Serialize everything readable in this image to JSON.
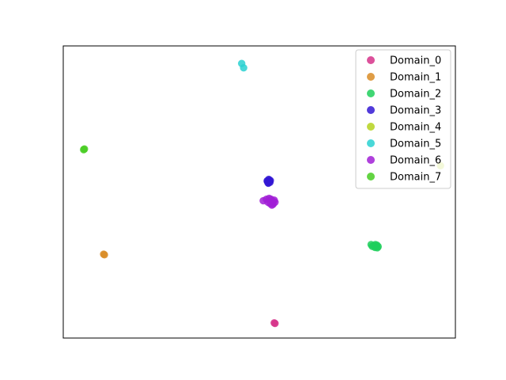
{
  "chart_data": {
    "type": "scatter",
    "title": "",
    "xlabel": "",
    "ylabel": "",
    "xlim": [
      0,
      100
    ],
    "ylim": [
      0,
      100
    ],
    "axes_ticks": false,
    "grid": false,
    "legend_position": "top-right",
    "series": [
      {
        "name": "Domain_0",
        "color": "#d6338a",
        "points": [
          [
            54.0,
            5.0
          ],
          [
            53.8,
            5.2
          ]
        ]
      },
      {
        "name": "Domain_1",
        "color": "#d98c26",
        "points": [
          [
            10.5,
            28.5
          ],
          [
            10.3,
            28.7
          ]
        ]
      },
      {
        "name": "Domain_2",
        "color": "#1fcf5c",
        "points": [
          [
            78.5,
            32.0
          ],
          [
            79.2,
            31.6
          ],
          [
            79.8,
            31.2
          ],
          [
            80.0,
            31.8
          ],
          [
            79.5,
            31.0
          ],
          [
            80.3,
            31.3
          ],
          [
            78.8,
            31.4
          ],
          [
            79.6,
            32.0
          ],
          [
            80.1,
            30.9
          ]
        ]
      },
      {
        "name": "Domain_3",
        "color": "#3318d4",
        "points": [
          [
            52.0,
            53.8
          ],
          [
            52.5,
            53.5
          ],
          [
            52.2,
            53.2
          ],
          [
            52.8,
            53.9
          ],
          [
            52.4,
            54.3
          ],
          [
            52.1,
            53.6
          ],
          [
            52.7,
            53.3
          ],
          [
            52.3,
            53.0
          ],
          [
            52.6,
            54.0
          ]
        ]
      },
      {
        "name": "Domain_4",
        "color": "#b5d21f",
        "points": [
          [
            96.2,
            59.0
          ]
        ]
      },
      {
        "name": "Domain_5",
        "color": "#29d1d1",
        "points": [
          [
            45.5,
            94.0
          ],
          [
            46.0,
            92.5
          ]
        ]
      },
      {
        "name": "Domain_6",
        "color": "#a11fd6",
        "points": [
          [
            51.0,
            47.0
          ],
          [
            53.0,
            47.5
          ],
          [
            53.5,
            46.8
          ],
          [
            52.8,
            46.0
          ],
          [
            54.0,
            46.5
          ],
          [
            53.2,
            45.5
          ],
          [
            52.5,
            47.8
          ],
          [
            51.8,
            47.5
          ],
          [
            53.8,
            47.2
          ],
          [
            52.2,
            46.5
          ],
          [
            53.5,
            45.8
          ]
        ]
      },
      {
        "name": "Domain_7",
        "color": "#48cc22",
        "points": [
          [
            5.2,
            64.5
          ],
          [
            5.4,
            64.7
          ]
        ]
      }
    ]
  }
}
